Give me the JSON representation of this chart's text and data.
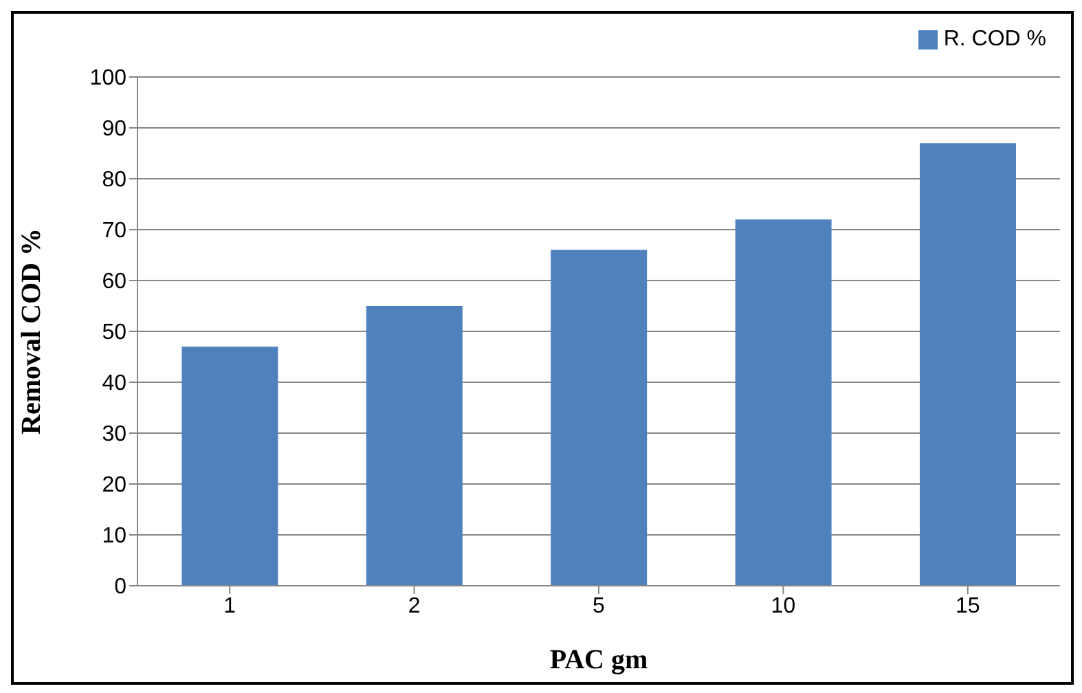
{
  "chart_data": {
    "type": "bar",
    "xlabel": "PAC gm",
    "ylabel": "Removal COD %",
    "categories": [
      "1",
      "2",
      "5",
      "10",
      "15"
    ],
    "series": [
      {
        "name": "R. COD %",
        "color": "#4f81bd",
        "values": [
          47,
          55,
          66,
          72,
          87
        ]
      }
    ],
    "ylim": [
      0,
      100
    ],
    "yticks": [
      0,
      10,
      20,
      30,
      40,
      50,
      60,
      70,
      80,
      90,
      100
    ],
    "grid": "y",
    "legend": "top right"
  }
}
